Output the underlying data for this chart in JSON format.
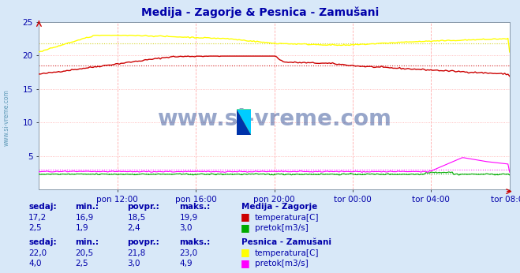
{
  "title": "Medija - Zagorje & Pesnica - Zamušani",
  "title_color": "#0000aa",
  "bg_color": "#d8e8f8",
  "plot_bg_color": "#ffffff",
  "ylim": [
    0,
    25
  ],
  "ytick_vals": [
    5,
    10,
    15,
    20,
    25
  ],
  "xlabel_color": "#0000aa",
  "xtick_labels": [
    "pon 12:00",
    "pon 16:00",
    "pon 20:00",
    "tor 00:00",
    "tor 04:00",
    "tor 08:00"
  ],
  "n_points": 288,
  "medija_temp_min": 16.9,
  "medija_temp_max": 19.9,
  "medija_temp_avg": 18.5,
  "medija_temp_curr": 17.2,
  "medija_flow_min": 1.9,
  "medija_flow_max": 3.0,
  "medija_flow_avg": 2.4,
  "medija_flow_curr": 2.5,
  "pesnica_temp_min": 20.5,
  "pesnica_temp_max": 23.0,
  "pesnica_temp_avg": 21.8,
  "pesnica_temp_curr": 22.0,
  "pesnica_flow_min": 2.5,
  "pesnica_flow_max": 4.9,
  "pesnica_flow_avg": 3.0,
  "pesnica_flow_curr": 4.0,
  "color_medija_temp": "#cc0000",
  "color_medija_flow": "#00aa00",
  "color_pesnica_temp": "#ffff00",
  "color_pesnica_flow": "#ff00ff",
  "watermark": "www.si-vreme.com",
  "watermark_color": "#1a3a8a",
  "left_label": "www.si-vreme.com",
  "table_color": "#0000aa",
  "station1_label": "Medija - Zagorje",
  "station2_label": "Pesnica - Zamušani",
  "table_header": [
    "sedaj:",
    "min.:",
    "povpr.:",
    "maks.:"
  ]
}
